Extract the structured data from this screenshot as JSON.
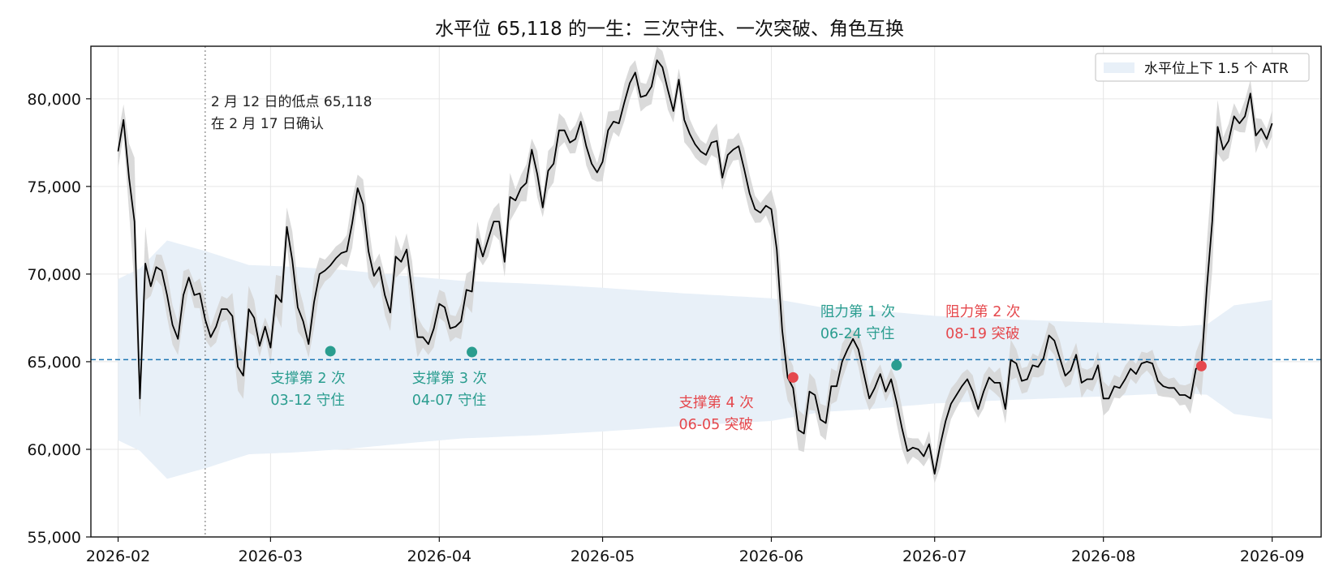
{
  "chart_data": {
    "type": "line",
    "title": "水平位 65,118 的一生：三次守住、一次突破、角色互换",
    "xlabel": "",
    "ylabel": "",
    "x_range": [
      "2026-01-27",
      "2026-09-10"
    ],
    "ylim": [
      55000,
      83000
    ],
    "y_ticks": [
      55000,
      60000,
      65000,
      70000,
      75000,
      80000
    ],
    "y_tick_labels": [
      "55,000",
      "60,000",
      "65,000",
      "70,000",
      "75,000",
      "80,000"
    ],
    "x_ticks": [
      "2026-02-01",
      "2026-03-01",
      "2026-04-01",
      "2026-05-01",
      "2026-06-01",
      "2026-07-01",
      "2026-08-01",
      "2026-09-01"
    ],
    "x_tick_labels": [
      "2026-02",
      "2026-03",
      "2026-04",
      "2026-05",
      "2026-06",
      "2026-07",
      "2026-08",
      "2026-09"
    ],
    "grid": true,
    "legend": {
      "placement": "top-right",
      "entries": [
        "水平位上下 1.5 个 ATR"
      ]
    },
    "level": {
      "value": 65118,
      "color": "#1f77b4"
    },
    "confirm_line_date": "2026-02-17",
    "confirm_note": [
      "2 月 12 日的低点 65,118",
      "在 2 月 17 日确认"
    ],
    "colors": {
      "hold": "#2a9d8f",
      "break": "#e5484d",
      "price": "#000000",
      "band": "#e8f0f8",
      "range": "#d6d6d6"
    },
    "price": [
      [
        "2026-02-01",
        77000
      ],
      [
        "2026-02-02",
        78800
      ],
      [
        "2026-02-03",
        75500
      ],
      [
        "2026-02-04",
        73000
      ],
      [
        "2026-02-05",
        62900
      ],
      [
        "2026-02-06",
        70600
      ],
      [
        "2026-02-07",
        69300
      ],
      [
        "2026-02-08",
        70400
      ],
      [
        "2026-02-09",
        70200
      ],
      [
        "2026-02-10",
        68800
      ],
      [
        "2026-02-11",
        67100
      ],
      [
        "2026-02-12",
        66300
      ],
      [
        "2026-02-13",
        68800
      ],
      [
        "2026-02-14",
        69800
      ],
      [
        "2026-02-15",
        68800
      ],
      [
        "2026-02-16",
        68900
      ],
      [
        "2026-02-17",
        67400
      ],
      [
        "2026-02-18",
        66400
      ],
      [
        "2026-02-19",
        67000
      ],
      [
        "2026-02-20",
        68000
      ],
      [
        "2026-02-21",
        68000
      ],
      [
        "2026-02-22",
        67600
      ],
      [
        "2026-02-23",
        64700
      ],
      [
        "2026-02-24",
        64200
      ],
      [
        "2026-02-25",
        68000
      ],
      [
        "2026-02-26",
        67500
      ],
      [
        "2026-02-27",
        65900
      ],
      [
        "2026-02-28",
        67000
      ],
      [
        "2026-03-01",
        65800
      ],
      [
        "2026-03-02",
        68800
      ],
      [
        "2026-03-03",
        68400
      ],
      [
        "2026-03-04",
        72700
      ],
      [
        "2026-03-05",
        70800
      ],
      [
        "2026-03-06",
        68100
      ],
      [
        "2026-03-07",
        67300
      ],
      [
        "2026-03-08",
        66000
      ],
      [
        "2026-03-09",
        68400
      ],
      [
        "2026-03-10",
        70000
      ],
      [
        "2026-03-11",
        70200
      ],
      [
        "2026-03-12",
        70500
      ],
      [
        "2026-03-13",
        70900
      ],
      [
        "2026-03-14",
        71200
      ],
      [
        "2026-03-15",
        71300
      ],
      [
        "2026-03-16",
        72900
      ],
      [
        "2026-03-17",
        74900
      ],
      [
        "2026-03-18",
        74000
      ],
      [
        "2026-03-19",
        71300
      ],
      [
        "2026-03-20",
        69900
      ],
      [
        "2026-03-21",
        70400
      ],
      [
        "2026-03-22",
        68800
      ],
      [
        "2026-03-23",
        67800
      ],
      [
        "2026-03-24",
        71000
      ],
      [
        "2026-03-25",
        70700
      ],
      [
        "2026-03-26",
        71400
      ],
      [
        "2026-03-27",
        69000
      ],
      [
        "2026-03-28",
        66400
      ],
      [
        "2026-03-29",
        66400
      ],
      [
        "2026-03-30",
        66000
      ],
      [
        "2026-03-31",
        66900
      ],
      [
        "2026-04-01",
        68300
      ],
      [
        "2026-04-02",
        68100
      ],
      [
        "2026-04-03",
        66900
      ],
      [
        "2026-04-04",
        67000
      ],
      [
        "2026-04-05",
        67300
      ],
      [
        "2026-04-06",
        69100
      ],
      [
        "2026-04-07",
        69000
      ],
      [
        "2026-04-08",
        72000
      ],
      [
        "2026-04-09",
        71000
      ],
      [
        "2026-04-10",
        72000
      ],
      [
        "2026-04-11",
        73000
      ],
      [
        "2026-04-12",
        73000
      ],
      [
        "2026-04-13",
        70700
      ],
      [
        "2026-04-14",
        74400
      ],
      [
        "2026-04-15",
        74200
      ],
      [
        "2026-04-16",
        74900
      ],
      [
        "2026-04-17",
        75200
      ],
      [
        "2026-04-18",
        77100
      ],
      [
        "2026-04-19",
        75700
      ],
      [
        "2026-04-20",
        73800
      ],
      [
        "2026-04-21",
        75900
      ],
      [
        "2026-04-22",
        76300
      ],
      [
        "2026-04-23",
        78200
      ],
      [
        "2026-04-24",
        78200
      ],
      [
        "2026-04-25",
        77500
      ],
      [
        "2026-04-26",
        77700
      ],
      [
        "2026-04-27",
        78700
      ],
      [
        "2026-04-28",
        77300
      ],
      [
        "2026-04-29",
        76300
      ],
      [
        "2026-04-30",
        75800
      ],
      [
        "2026-05-01",
        76400
      ],
      [
        "2026-05-02",
        78200
      ],
      [
        "2026-05-03",
        78700
      ],
      [
        "2026-05-04",
        78600
      ],
      [
        "2026-05-05",
        79800
      ],
      [
        "2026-05-06",
        80900
      ],
      [
        "2026-05-07",
        81500
      ],
      [
        "2026-05-08",
        80100
      ],
      [
        "2026-05-09",
        80200
      ],
      [
        "2026-05-10",
        80700
      ],
      [
        "2026-05-11",
        82200
      ],
      [
        "2026-05-12",
        81800
      ],
      [
        "2026-05-13",
        80500
      ],
      [
        "2026-05-14",
        79300
      ],
      [
        "2026-05-15",
        81100
      ],
      [
        "2026-05-16",
        78800
      ],
      [
        "2026-05-17",
        78000
      ],
      [
        "2026-05-18",
        77400
      ],
      [
        "2026-05-19",
        77000
      ],
      [
        "2026-05-20",
        76800
      ],
      [
        "2026-05-21",
        77500
      ],
      [
        "2026-05-22",
        77600
      ],
      [
        "2026-05-23",
        75500
      ],
      [
        "2026-05-24",
        76800
      ],
      [
        "2026-05-25",
        77100
      ],
      [
        "2026-05-26",
        77300
      ],
      [
        "2026-05-27",
        76000
      ],
      [
        "2026-05-28",
        74600
      ],
      [
        "2026-05-29",
        73700
      ],
      [
        "2026-05-30",
        73500
      ],
      [
        "2026-05-31",
        73900
      ],
      [
        "2026-06-01",
        73700
      ],
      [
        "2026-06-02",
        71400
      ],
      [
        "2026-06-03",
        66800
      ],
      [
        "2026-06-04",
        64100
      ],
      [
        "2026-06-05",
        63500
      ],
      [
        "2026-06-06",
        61100
      ],
      [
        "2026-06-07",
        60900
      ],
      [
        "2026-06-08",
        63300
      ],
      [
        "2026-06-09",
        63100
      ],
      [
        "2026-06-10",
        61700
      ],
      [
        "2026-06-11",
        61500
      ],
      [
        "2026-06-12",
        63600
      ],
      [
        "2026-06-13",
        63600
      ],
      [
        "2026-06-14",
        65000
      ],
      [
        "2026-06-15",
        65700
      ],
      [
        "2026-06-16",
        66300
      ],
      [
        "2026-06-17",
        65700
      ],
      [
        "2026-06-18",
        64300
      ],
      [
        "2026-06-19",
        62900
      ],
      [
        "2026-06-20",
        63500
      ],
      [
        "2026-06-21",
        64300
      ],
      [
        "2026-06-22",
        63300
      ],
      [
        "2026-06-23",
        64000
      ],
      [
        "2026-06-24",
        62700
      ],
      [
        "2026-06-25",
        61200
      ],
      [
        "2026-06-26",
        59900
      ],
      [
        "2026-06-27",
        60100
      ],
      [
        "2026-06-28",
        60000
      ],
      [
        "2026-06-29",
        59600
      ],
      [
        "2026-06-30",
        60300
      ],
      [
        "2026-07-01",
        58600
      ],
      [
        "2026-07-02",
        60200
      ],
      [
        "2026-07-03",
        61600
      ],
      [
        "2026-07-04",
        62600
      ],
      [
        "2026-07-05",
        63100
      ],
      [
        "2026-07-06",
        63600
      ],
      [
        "2026-07-07",
        64000
      ],
      [
        "2026-07-08",
        63300
      ],
      [
        "2026-07-09",
        62300
      ],
      [
        "2026-07-10",
        63300
      ],
      [
        "2026-07-11",
        64100
      ],
      [
        "2026-07-12",
        63800
      ],
      [
        "2026-07-13",
        63800
      ],
      [
        "2026-07-14",
        62300
      ],
      [
        "2026-07-15",
        65100
      ],
      [
        "2026-07-16",
        64900
      ],
      [
        "2026-07-17",
        63900
      ],
      [
        "2026-07-18",
        64000
      ],
      [
        "2026-07-19",
        64800
      ],
      [
        "2026-07-20",
        64700
      ],
      [
        "2026-07-21",
        65200
      ],
      [
        "2026-07-22",
        66500
      ],
      [
        "2026-07-23",
        66200
      ],
      [
        "2026-07-24",
        65200
      ],
      [
        "2026-07-25",
        64200
      ],
      [
        "2026-07-26",
        64500
      ],
      [
        "2026-07-27",
        65400
      ],
      [
        "2026-07-28",
        63800
      ],
      [
        "2026-07-29",
        64000
      ],
      [
        "2026-07-30",
        64000
      ],
      [
        "2026-07-31",
        64800
      ],
      [
        "2026-08-01",
        62900
      ],
      [
        "2026-08-02",
        62900
      ],
      [
        "2026-08-03",
        63600
      ],
      [
        "2026-08-04",
        63500
      ],
      [
        "2026-08-05",
        64000
      ],
      [
        "2026-08-06",
        64600
      ],
      [
        "2026-08-07",
        64300
      ],
      [
        "2026-08-08",
        64900
      ],
      [
        "2026-08-09",
        65000
      ],
      [
        "2026-08-10",
        64900
      ],
      [
        "2026-08-11",
        63900
      ],
      [
        "2026-08-12",
        63600
      ],
      [
        "2026-08-13",
        63500
      ],
      [
        "2026-08-14",
        63500
      ],
      [
        "2026-08-15",
        63100
      ],
      [
        "2026-08-16",
        63100
      ],
      [
        "2026-08-17",
        62900
      ],
      [
        "2026-08-18",
        64600
      ],
      [
        "2026-08-19",
        64700
      ],
      [
        "2026-08-20",
        69200
      ],
      [
        "2026-08-21",
        73000
      ],
      [
        "2026-08-22",
        78400
      ],
      [
        "2026-08-23",
        77100
      ],
      [
        "2026-08-24",
        77600
      ],
      [
        "2026-08-25",
        79000
      ],
      [
        "2026-08-26",
        78600
      ],
      [
        "2026-08-27",
        79000
      ],
      [
        "2026-08-28",
        80300
      ],
      [
        "2026-08-29",
        77900
      ],
      [
        "2026-08-30",
        78300
      ],
      [
        "2026-08-31",
        77700
      ],
      [
        "2026-09-01",
        78600
      ]
    ],
    "band_half_width": [
      [
        "2026-02-01",
        4600
      ],
      [
        "2026-02-05",
        5200
      ],
      [
        "2026-02-10",
        6800
      ],
      [
        "2026-02-17",
        6200
      ],
      [
        "2026-02-25",
        5400
      ],
      [
        "2026-03-05",
        5300
      ],
      [
        "2026-03-15",
        5100
      ],
      [
        "2026-03-25",
        4800
      ],
      [
        "2026-04-05",
        4500
      ],
      [
        "2026-04-20",
        4300
      ],
      [
        "2026-05-01",
        4100
      ],
      [
        "2026-05-15",
        3800
      ],
      [
        "2026-06-01",
        3500
      ],
      [
        "2026-06-10",
        3000
      ],
      [
        "2026-06-20",
        2800
      ],
      [
        "2026-07-01",
        2500
      ],
      [
        "2026-07-15",
        2300
      ],
      [
        "2026-08-01",
        2100
      ],
      [
        "2026-08-15",
        1900
      ],
      [
        "2026-08-20",
        2000
      ],
      [
        "2026-08-25",
        3100
      ],
      [
        "2026-09-01",
        3400
      ]
    ],
    "annotations": [
      {
        "date": "2026-03-12",
        "value": 65600,
        "kind": "hold",
        "lines": [
          "支撑第 2 次",
          "03-12 守住"
        ],
        "text_anchor_date": "2026-03-01",
        "text_value": 63800
      },
      {
        "date": "2026-04-07",
        "value": 65550,
        "kind": "hold",
        "lines": [
          "支撑第 3 次",
          "04-07 守住"
        ],
        "text_anchor_date": "2026-03-27",
        "text_value": 63800
      },
      {
        "date": "2026-06-05",
        "value": 64100,
        "kind": "break",
        "lines": [
          "支撑第 4 次",
          "06-05 突破"
        ],
        "text_anchor_date": "2026-05-15",
        "text_value": 62400
      },
      {
        "date": "2026-06-24",
        "value": 64800,
        "kind": "hold",
        "lines": [
          "阻力第 1 次",
          "06-24 守住"
        ],
        "text_anchor_date": "2026-06-10",
        "text_value": 67600
      },
      {
        "date": "2026-08-19",
        "value": 64750,
        "kind": "break",
        "lines": [
          "阻力第 2 次",
          "08-19 突破"
        ],
        "text_anchor_date": "2026-07-03",
        "text_value": 67600
      }
    ]
  }
}
